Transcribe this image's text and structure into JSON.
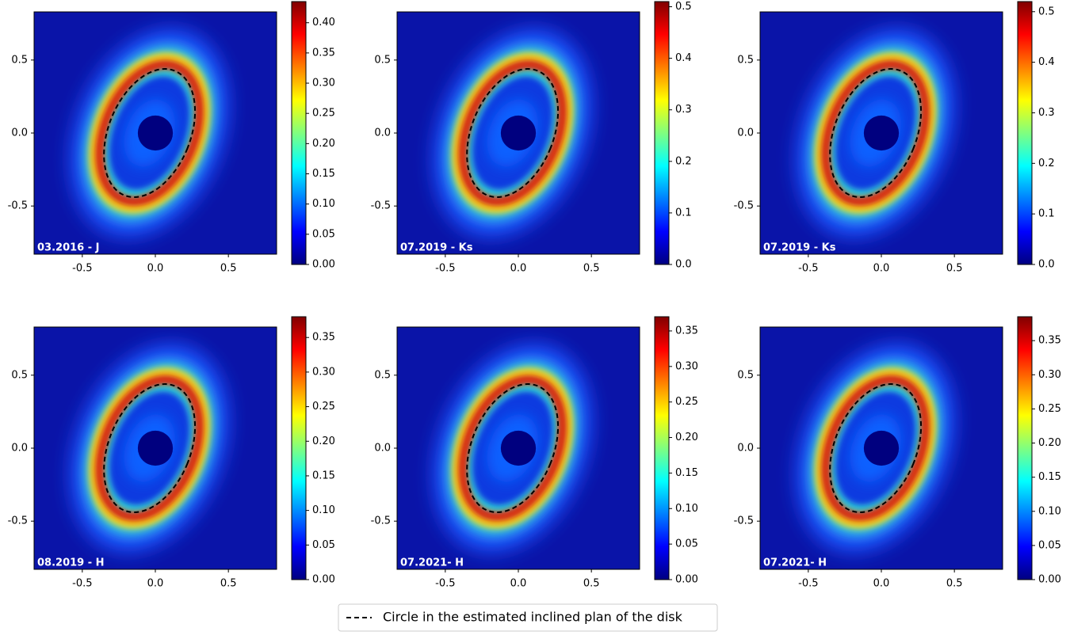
{
  "chart_data": [
    {
      "type": "image",
      "label": "03.2016 - J",
      "xlim": [
        -0.83,
        0.83
      ],
      "ylim": [
        -0.83,
        0.83
      ],
      "xticks": [
        -0.5,
        {
          "value": 0,
          "label": "0.0"
        },
        0.5
      ],
      "yticks": [
        -0.5,
        {
          "value": 0,
          "label": "0.0"
        },
        0.5
      ],
      "colormap": "jet",
      "clim": [
        0,
        0.435
      ],
      "cticks": [
        {
          "value": 0,
          "label": "0.00"
        },
        0.05,
        {
          "value": 0.1,
          "label": "0.10"
        },
        0.15,
        {
          "value": 0.2,
          "label": "0.20"
        },
        0.25,
        {
          "value": 0.3,
          "label": "0.30"
        },
        0.35,
        {
          "value": 0.4,
          "label": "0.40"
        }
      ]
    },
    {
      "type": "image",
      "label": "07.2019 - Ks",
      "xlim": [
        -0.83,
        0.83
      ],
      "ylim": [
        -0.83,
        0.83
      ],
      "xticks": [
        -0.5,
        {
          "value": 0,
          "label": "0.0"
        },
        0.5
      ],
      "yticks": [
        -0.5,
        {
          "value": 0,
          "label": "0.0"
        },
        0.5
      ],
      "colormap": "jet",
      "clim": [
        0,
        0.51
      ],
      "cticks": [
        {
          "value": 0,
          "label": "0.0"
        },
        0.1,
        0.2,
        0.3,
        0.4,
        0.5
      ]
    },
    {
      "type": "image",
      "label": "07.2019 - Ks",
      "xlim": [
        -0.83,
        0.83
      ],
      "ylim": [
        -0.83,
        0.83
      ],
      "xticks": [
        -0.5,
        {
          "value": 0,
          "label": "0.0"
        },
        0.5
      ],
      "yticks": [
        -0.5,
        {
          "value": 0,
          "label": "0.0"
        },
        0.5
      ],
      "colormap": "jet",
      "clim": [
        0,
        0.52
      ],
      "cticks": [
        {
          "value": 0,
          "label": "0.0"
        },
        0.1,
        0.2,
        0.3,
        0.4,
        0.5
      ]
    },
    {
      "type": "image",
      "label": "08.2019 - H",
      "xlim": [
        -0.83,
        0.83
      ],
      "ylim": [
        -0.83,
        0.83
      ],
      "xticks": [
        -0.5,
        {
          "value": 0,
          "label": "0.0"
        },
        0.5
      ],
      "yticks": [
        -0.5,
        {
          "value": 0,
          "label": "0.0"
        },
        0.5
      ],
      "colormap": "jet",
      "clim": [
        0,
        0.38
      ],
      "cticks": [
        {
          "value": 0,
          "label": "0.00"
        },
        0.05,
        {
          "value": 0.1,
          "label": "0.10"
        },
        0.15,
        {
          "value": 0.2,
          "label": "0.20"
        },
        0.25,
        {
          "value": 0.3,
          "label": "0.30"
        },
        0.35
      ]
    },
    {
      "type": "image",
      "label": "07.2021- H",
      "xlim": [
        -0.83,
        0.83
      ],
      "ylim": [
        -0.83,
        0.83
      ],
      "xticks": [
        -0.5,
        {
          "value": 0,
          "label": "0.0"
        },
        0.5
      ],
      "yticks": [
        -0.5,
        {
          "value": 0,
          "label": "0.0"
        },
        0.5
      ],
      "colormap": "jet",
      "clim": [
        0,
        0.37
      ],
      "cticks": [
        {
          "value": 0,
          "label": "0.00"
        },
        0.05,
        {
          "value": 0.1,
          "label": "0.10"
        },
        0.15,
        {
          "value": 0.2,
          "label": "0.20"
        },
        0.25,
        {
          "value": 0.3,
          "label": "0.30"
        },
        0.35
      ]
    },
    {
      "type": "image",
      "label": "07.2021- H",
      "xlim": [
        -0.83,
        0.83
      ],
      "ylim": [
        -0.83,
        0.83
      ],
      "xticks": [
        -0.5,
        {
          "value": 0,
          "label": "0.0"
        },
        0.5
      ],
      "yticks": [
        -0.5,
        {
          "value": 0,
          "label": "0.0"
        },
        0.5
      ],
      "colormap": "jet",
      "clim": [
        0,
        0.385
      ],
      "cticks": [
        {
          "value": 0,
          "label": "0.00"
        },
        0.05,
        {
          "value": 0.1,
          "label": "0.10"
        },
        0.15,
        {
          "value": 0.2,
          "label": "0.20"
        },
        0.25,
        {
          "value": 0.3,
          "label": "0.30"
        },
        0.35
      ]
    }
  ],
  "legend": {
    "label": "Circle in the estimated inclined plan of the disk"
  }
}
